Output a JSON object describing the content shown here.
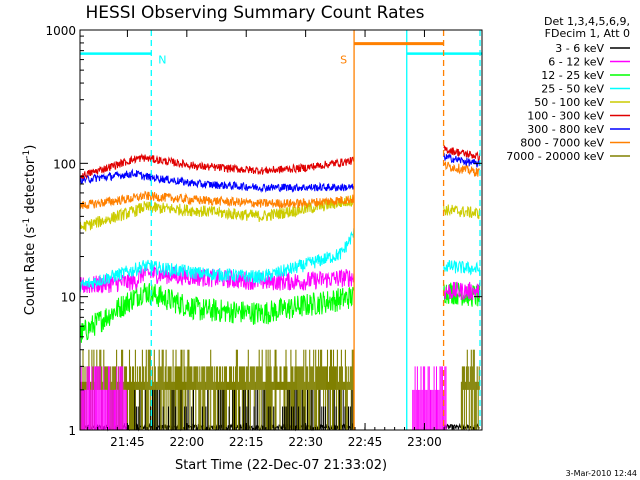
{
  "chart_data": {
    "type": "line",
    "title": "HESSI Observing Summary Count Rates",
    "xlabel": "Start Time (22-Dec-07 21:33:02)",
    "ylabel_main": "Count Rate (s",
    "ylabel_sup1": "-1",
    "ylabel_mid": " detector",
    "ylabel_sup2": "-1",
    "ylabel_end": ")",
    "yscale": "log",
    "ylim": [
      1,
      1000
    ],
    "xlim_minutes": [
      0,
      101.5
    ],
    "x_ticks": [
      {
        "label": "21:45",
        "minute": 11.97
      },
      {
        "label": "22:00",
        "minute": 26.97
      },
      {
        "label": "22:15",
        "minute": 41.97
      },
      {
        "label": "22:30",
        "minute": 56.97
      },
      {
        "label": "22:45",
        "minute": 71.97
      },
      {
        "label": "23:00",
        "minute": 86.97
      }
    ],
    "y_ticks": [
      {
        "label": "1",
        "value": 1
      },
      {
        "label": "10",
        "value": 10
      },
      {
        "label": "100",
        "value": 100
      },
      {
        "label": "1000",
        "value": 1000
      }
    ],
    "legend_header": [
      "Det 1,3,4,5,6,9,",
      "FDecim 1, Att 0"
    ],
    "series": [
      {
        "name": "3 - 6 keV",
        "color": "#000000"
      },
      {
        "name": "6 - 12 keV",
        "color": "#ff00ff"
      },
      {
        "name": "12 - 25 keV",
        "color": "#00ff00"
      },
      {
        "name": "25 - 50 keV",
        "color": "#00ffff"
      },
      {
        "name": "50 - 100 keV",
        "color": "#cccc00"
      },
      {
        "name": "100 - 300 keV",
        "color": "#e00000"
      },
      {
        "name": "300 - 800 keV",
        "color": "#0000ff"
      },
      {
        "name": "800 - 7000 keV",
        "color": "#ff8000"
      },
      {
        "name": "7000 - 20000 keV",
        "color": "#808000"
      }
    ],
    "profiles": {
      "300 - 800 keV": [
        [
          0,
          75
        ],
        [
          14,
          84
        ],
        [
          16,
          80
        ],
        [
          30,
          70
        ],
        [
          46,
          66
        ],
        [
          56,
          66
        ],
        [
          69.2,
          66
        ],
        [
          91.8,
          112
        ],
        [
          101,
          98
        ]
      ],
      "100 - 300 keV": [
        [
          0,
          80
        ],
        [
          14,
          108
        ],
        [
          16,
          110
        ],
        [
          30,
          95
        ],
        [
          46,
          88
        ],
        [
          56,
          92
        ],
        [
          69.2,
          105
        ],
        [
          91.8,
          128
        ],
        [
          101,
          112
        ]
      ],
      "800 - 7000 keV": [
        [
          0,
          48
        ],
        [
          14,
          55
        ],
        [
          16,
          57
        ],
        [
          30,
          53
        ],
        [
          46,
          50
        ],
        [
          56,
          50
        ],
        [
          69.2,
          54
        ],
        [
          91.8,
          97
        ],
        [
          101,
          85
        ]
      ],
      "50 - 100 keV": [
        [
          0,
          33
        ],
        [
          14,
          44
        ],
        [
          16,
          47
        ],
        [
          30,
          44
        ],
        [
          46,
          40
        ],
        [
          56,
          45
        ],
        [
          69.2,
          53
        ],
        [
          91.8,
          45
        ],
        [
          101,
          42
        ]
      ],
      "25 - 50 keV": [
        [
          0,
          12
        ],
        [
          14,
          16
        ],
        [
          16,
          17
        ],
        [
          30,
          15
        ],
        [
          46,
          14
        ],
        [
          56,
          17
        ],
        [
          66,
          21
        ],
        [
          69.2,
          30
        ],
        [
          91.8,
          17
        ],
        [
          101,
          16
        ]
      ],
      "6 - 12 keV": [
        [
          0,
          12
        ],
        [
          14,
          13
        ],
        [
          16,
          15
        ],
        [
          30,
          14
        ],
        [
          46,
          13
        ],
        [
          56,
          13
        ],
        [
          69.2,
          14
        ],
        [
          91.8,
          11
        ],
        [
          101,
          11
        ]
      ],
      "12 - 25 keV": [
        [
          0,
          5.2
        ],
        [
          14,
          10
        ],
        [
          16,
          11
        ],
        [
          30,
          8
        ],
        [
          46,
          7.5
        ],
        [
          56,
          8.5
        ],
        [
          69.2,
          10
        ],
        [
          91.8,
          11
        ],
        [
          101,
          10
        ]
      ],
      "3 - 6 keV": [
        [
          0,
          1.05
        ],
        [
          69.2,
          1.05
        ],
        [
          91.8,
          1.05
        ],
        [
          101,
          1.05
        ]
      ]
    },
    "annotations": [
      {
        "label": "N",
        "kind": "night-start",
        "minute": 18.0
      },
      {
        "label": "S",
        "kind": "saa-start",
        "minute": 69.2
      }
    ],
    "saa_interval": [
      69.2,
      91.8
    ],
    "night_intervals": [
      [
        0,
        18.0
      ],
      [
        82.5,
        101.5
      ]
    ]
  },
  "footer_date": "3-Mar-2010 12:44"
}
